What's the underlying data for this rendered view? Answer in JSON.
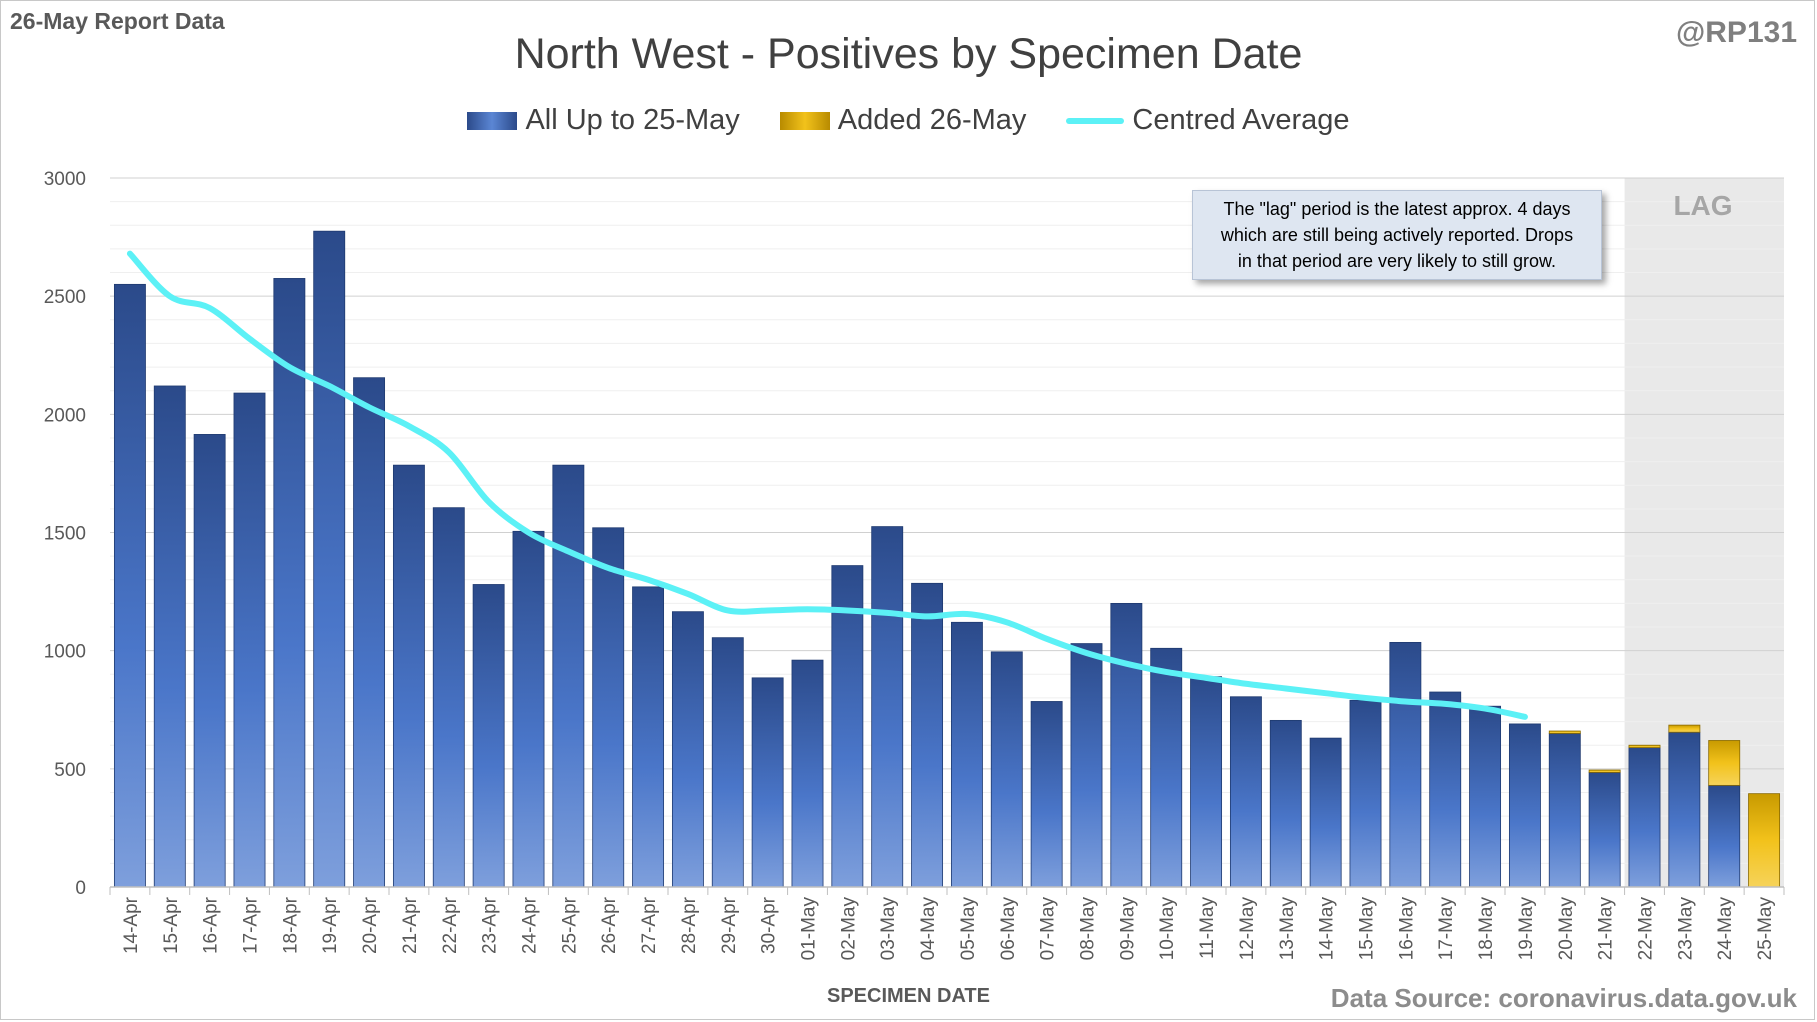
{
  "header": {
    "report_label": "26-May Report Data",
    "handle": "@RP131"
  },
  "footer": {
    "source": "Data Source: coronavirus.data.gov.uk"
  },
  "note": {
    "lines": [
      "The \"lag\" period is the latest approx. 4 days",
      "which are still being actively reported.  Drops",
      "in that period are very likely to still grow."
    ]
  },
  "lag_region": {
    "label": "LAG",
    "start_category": "22-May",
    "end_category": "25-May"
  },
  "colors": {
    "series_base": "#3b64b4",
    "series_added": "#f2c21b",
    "average_line": "#5cf1f6",
    "lag_shade": "#e9e9e9",
    "grid": "#d9d9d9"
  },
  "chart_data": {
    "type": "bar",
    "title": "North West - Positives by Specimen Date",
    "xlabel": "SPECIMEN DATE",
    "ylabel": "",
    "ylim": [
      0,
      3000
    ],
    "yticks": [
      0,
      500,
      1000,
      1500,
      2000,
      2500,
      3000
    ],
    "grid": true,
    "legend_position": "top",
    "stacked": true,
    "categories": [
      "14-Apr",
      "15-Apr",
      "16-Apr",
      "17-Apr",
      "18-Apr",
      "19-Apr",
      "20-Apr",
      "21-Apr",
      "22-Apr",
      "23-Apr",
      "24-Apr",
      "25-Apr",
      "26-Apr",
      "27-Apr",
      "28-Apr",
      "29-Apr",
      "30-Apr",
      "01-May",
      "02-May",
      "03-May",
      "04-May",
      "05-May",
      "06-May",
      "07-May",
      "08-May",
      "09-May",
      "10-May",
      "11-May",
      "12-May",
      "13-May",
      "14-May",
      "15-May",
      "16-May",
      "17-May",
      "18-May",
      "19-May",
      "20-May",
      "21-May",
      "22-May",
      "23-May",
      "24-May",
      "25-May"
    ],
    "series": [
      {
        "name": "All Up to 25-May",
        "type": "bar",
        "values": [
          2550,
          2120,
          1915,
          2090,
          2575,
          2775,
          2155,
          1785,
          1605,
          1280,
          1505,
          1785,
          1520,
          1270,
          1165,
          1055,
          885,
          960,
          1360,
          1525,
          1285,
          1120,
          995,
          785,
          1030,
          1200,
          1010,
          890,
          805,
          705,
          630,
          790,
          1035,
          825,
          765,
          690,
          650,
          485,
          590,
          655,
          430,
          0
        ]
      },
      {
        "name": "Added 26-May",
        "type": "bar",
        "values": [
          0,
          0,
          0,
          0,
          0,
          0,
          0,
          0,
          0,
          0,
          0,
          0,
          0,
          0,
          0,
          0,
          0,
          0,
          0,
          0,
          0,
          0,
          0,
          0,
          0,
          0,
          0,
          0,
          0,
          0,
          0,
          0,
          0,
          0,
          0,
          0,
          10,
          10,
          10,
          30,
          190,
          395
        ]
      },
      {
        "name": "Centred Average",
        "type": "line",
        "values": [
          2680,
          2500,
          2450,
          2320,
          2200,
          2120,
          2030,
          1950,
          1840,
          1630,
          1500,
          1420,
          1350,
          1300,
          1240,
          1170,
          1170,
          1175,
          1170,
          1160,
          1145,
          1155,
          1120,
          1050,
          990,
          945,
          910,
          885,
          860,
          840,
          820,
          800,
          785,
          775,
          755,
          720,
          null,
          null,
          null,
          null,
          null,
          null
        ]
      }
    ]
  }
}
